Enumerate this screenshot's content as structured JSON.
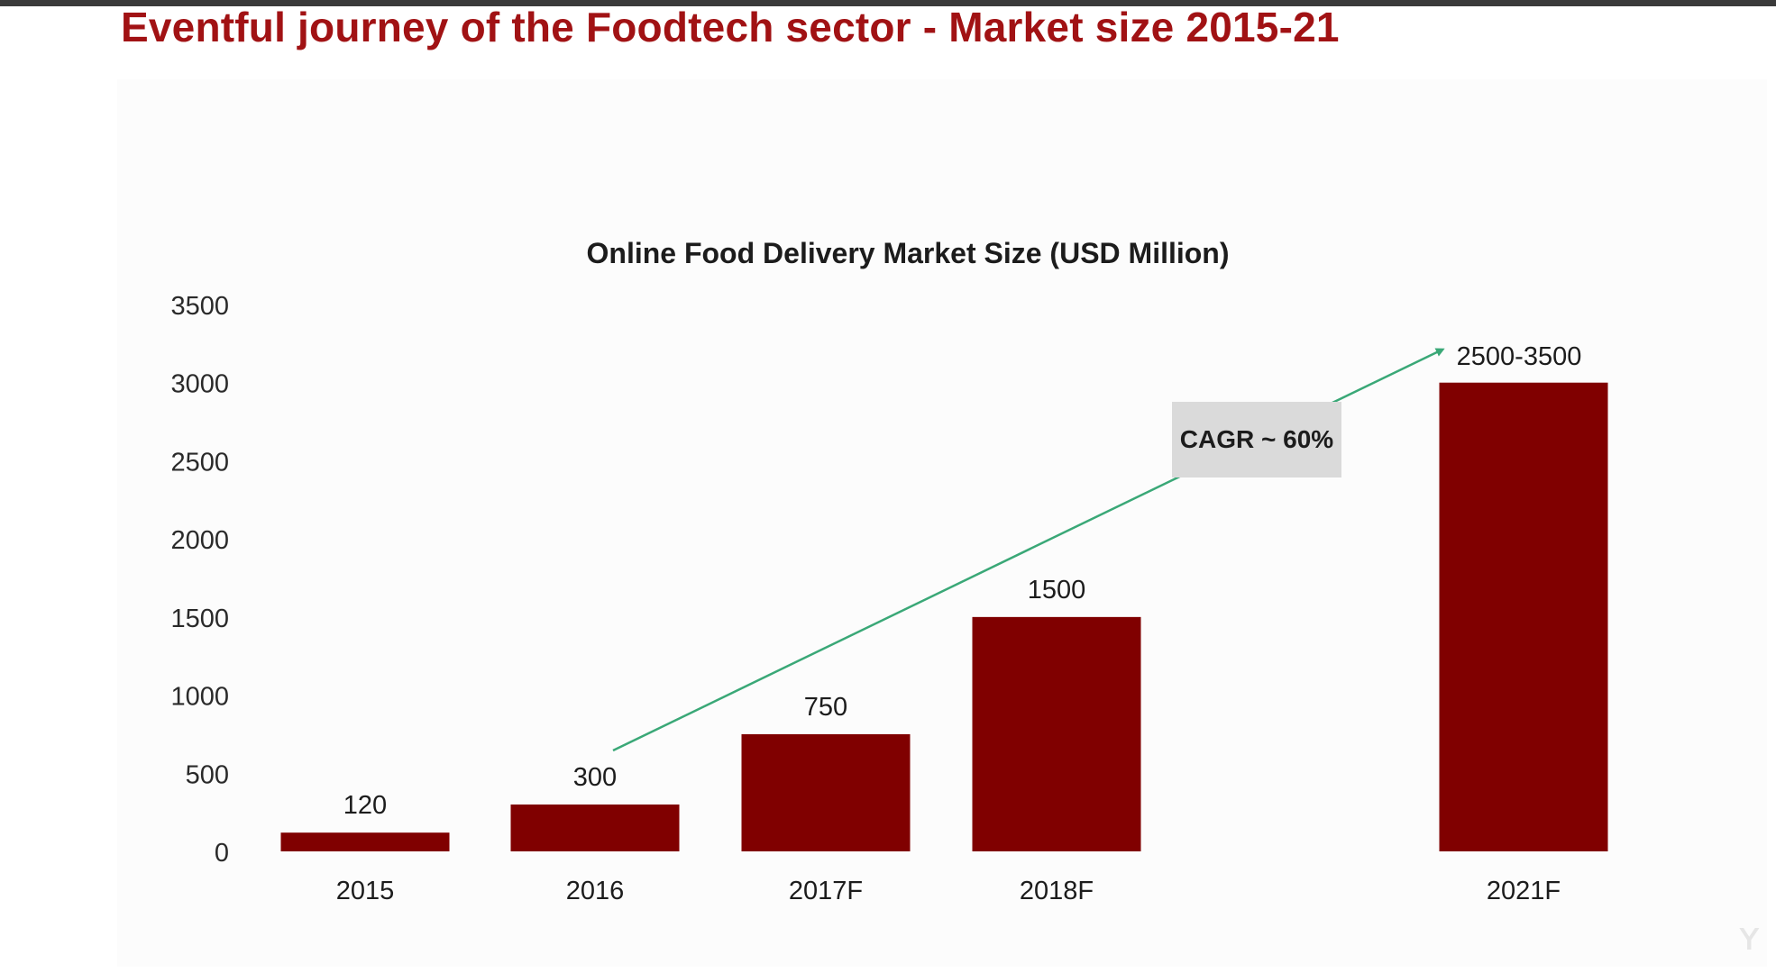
{
  "slide": {
    "title": "Eventful journey of the Foodtech sector - Market size 2015-21"
  },
  "colors": {
    "title": "#a11214",
    "bar": "#800000",
    "trend_arrow": "#3aa877",
    "cagr_box": "#dadada"
  },
  "chart_data": {
    "type": "bar",
    "title": "Online Food Delivery Market Size (USD Million)",
    "xlabel": "",
    "ylabel": "",
    "ylim": [
      0,
      3500
    ],
    "yticks": [
      0,
      500,
      1000,
      1500,
      2000,
      2500,
      3000,
      3500
    ],
    "categories": [
      "2015",
      "2016",
      "2017F",
      "2018F",
      "2021F"
    ],
    "values": [
      120,
      300,
      750,
      1500,
      3000
    ],
    "data_labels": [
      "120",
      "300",
      "750",
      "1500",
      "2500-3500"
    ],
    "grid": false,
    "legend": "none",
    "annotation": {
      "label": "CAGR ~ 60%",
      "type": "trend-arrow",
      "from_category": "2016",
      "to_category": "2021F"
    }
  }
}
